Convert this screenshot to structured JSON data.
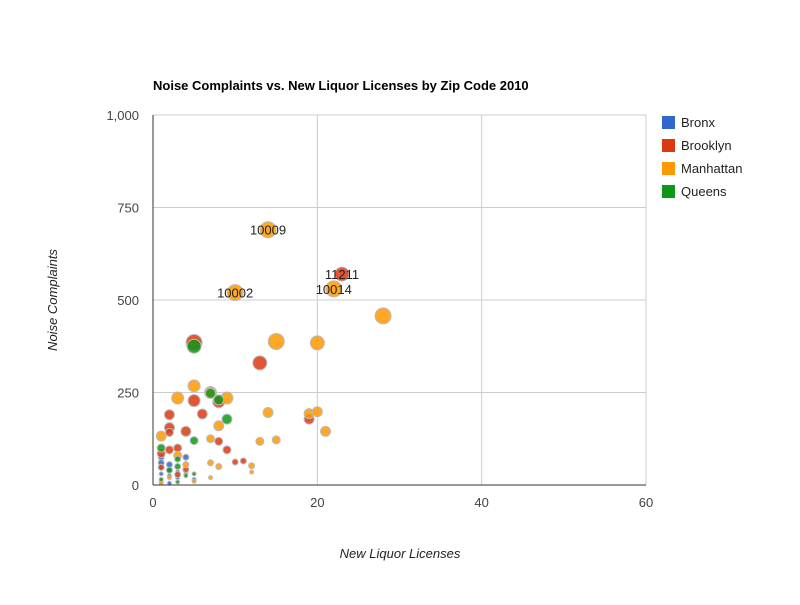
{
  "chart_data": {
    "type": "scatter",
    "title": "Noise Complaints vs. New Liquor Licenses by Zip Code 2010",
    "xlabel": "New Liquor Licenses",
    "ylabel": "Noise Complaints",
    "xlim": [
      0,
      60
    ],
    "ylim": [
      0,
      1000
    ],
    "x_ticks": [
      "0",
      "20",
      "40",
      "60"
    ],
    "y_ticks": [
      "0",
      "250",
      "500",
      "750",
      "1,000"
    ],
    "grid": true,
    "legend_position": "right",
    "series": [
      {
        "name": "Bronx",
        "color": "#3366cc",
        "points": [
          {
            "x": 1,
            "y": 75,
            "r": 3
          },
          {
            "x": 1,
            "y": 60,
            "r": 3
          },
          {
            "x": 1,
            "y": 45,
            "r": 2
          },
          {
            "x": 1,
            "y": 30,
            "r": 2
          },
          {
            "x": 2,
            "y": 55,
            "r": 3
          },
          {
            "x": 2,
            "y": 40,
            "r": 2
          },
          {
            "x": 2,
            "y": 25,
            "r": 2
          },
          {
            "x": 3,
            "y": 35,
            "r": 2
          },
          {
            "x": 3,
            "y": 20,
            "r": 2
          },
          {
            "x": 4,
            "y": 75,
            "r": 3
          },
          {
            "x": 4,
            "y": 30,
            "r": 2
          },
          {
            "x": 5,
            "y": 15,
            "r": 2
          },
          {
            "x": 1,
            "y": 10,
            "r": 2
          },
          {
            "x": 2,
            "y": 5,
            "r": 2
          }
        ]
      },
      {
        "name": "Brooklyn",
        "color": "#dc3912",
        "points": [
          {
            "x": 23,
            "y": 570,
            "r": 7,
            "label": "11211"
          },
          {
            "x": 5,
            "y": 385,
            "r": 8
          },
          {
            "x": 13,
            "y": 330,
            "r": 7
          },
          {
            "x": 5,
            "y": 228,
            "r": 6
          },
          {
            "x": 8,
            "y": 225,
            "r": 6
          },
          {
            "x": 6,
            "y": 192,
            "r": 5
          },
          {
            "x": 2,
            "y": 190,
            "r": 5
          },
          {
            "x": 19,
            "y": 178,
            "r": 5
          },
          {
            "x": 2,
            "y": 155,
            "r": 5
          },
          {
            "x": 4,
            "y": 145,
            "r": 5
          },
          {
            "x": 2,
            "y": 142,
            "r": 4
          },
          {
            "x": 8,
            "y": 118,
            "r": 4
          },
          {
            "x": 3,
            "y": 100,
            "r": 4
          },
          {
            "x": 2,
            "y": 95,
            "r": 4
          },
          {
            "x": 9,
            "y": 95,
            "r": 4
          },
          {
            "x": 1,
            "y": 85,
            "r": 4
          },
          {
            "x": 10,
            "y": 62,
            "r": 3
          },
          {
            "x": 11,
            "y": 65,
            "r": 3
          },
          {
            "x": 1,
            "y": 48,
            "r": 3
          },
          {
            "x": 4,
            "y": 42,
            "r": 3
          },
          {
            "x": 3,
            "y": 28,
            "r": 3
          }
        ]
      },
      {
        "name": "Manhattan",
        "color": "#ff9900",
        "points": [
          {
            "x": 14,
            "y": 690,
            "r": 8,
            "label": "10009"
          },
          {
            "x": 22,
            "y": 530,
            "r": 8,
            "label": "10014"
          },
          {
            "x": 10,
            "y": 520,
            "r": 8,
            "label": "10002"
          },
          {
            "x": 28,
            "y": 457,
            "r": 8
          },
          {
            "x": 15,
            "y": 388,
            "r": 8
          },
          {
            "x": 20,
            "y": 384,
            "r": 7
          },
          {
            "x": 5,
            "y": 268,
            "r": 6
          },
          {
            "x": 7,
            "y": 250,
            "r": 6
          },
          {
            "x": 3,
            "y": 235,
            "r": 6
          },
          {
            "x": 9,
            "y": 235,
            "r": 6
          },
          {
            "x": 14,
            "y": 196,
            "r": 5
          },
          {
            "x": 19,
            "y": 193,
            "r": 5
          },
          {
            "x": 20,
            "y": 198,
            "r": 5
          },
          {
            "x": 8,
            "y": 160,
            "r": 5
          },
          {
            "x": 21,
            "y": 145,
            "r": 5
          },
          {
            "x": 1,
            "y": 132,
            "r": 5
          },
          {
            "x": 7,
            "y": 125,
            "r": 4
          },
          {
            "x": 15,
            "y": 122,
            "r": 4
          },
          {
            "x": 13,
            "y": 118,
            "r": 4
          },
          {
            "x": 3,
            "y": 80,
            "r": 4
          },
          {
            "x": 7,
            "y": 60,
            "r": 3
          },
          {
            "x": 4,
            "y": 55,
            "r": 3
          },
          {
            "x": 12,
            "y": 52,
            "r": 3
          },
          {
            "x": 8,
            "y": 50,
            "r": 3
          },
          {
            "x": 12,
            "y": 35,
            "r": 2
          },
          {
            "x": 7,
            "y": 20,
            "r": 2
          },
          {
            "x": 2,
            "y": 20,
            "r": 2
          },
          {
            "x": 5,
            "y": 10,
            "r": 2
          },
          {
            "x": 1,
            "y": 5,
            "r": 2
          }
        ]
      },
      {
        "name": "Queens",
        "color": "#109618",
        "points": [
          {
            "x": 5,
            "y": 375,
            "r": 7
          },
          {
            "x": 8,
            "y": 230,
            "r": 5
          },
          {
            "x": 7,
            "y": 248,
            "r": 5
          },
          {
            "x": 9,
            "y": 178,
            "r": 5
          },
          {
            "x": 5,
            "y": 120,
            "r": 4
          },
          {
            "x": 1,
            "y": 100,
            "r": 4
          },
          {
            "x": 3,
            "y": 70,
            "r": 3
          },
          {
            "x": 3,
            "y": 50,
            "r": 3
          },
          {
            "x": 2,
            "y": 40,
            "r": 3
          },
          {
            "x": 4,
            "y": 25,
            "r": 2
          },
          {
            "x": 5,
            "y": 30,
            "r": 2
          },
          {
            "x": 1,
            "y": 15,
            "r": 2
          },
          {
            "x": 3,
            "y": 8,
            "r": 2
          }
        ]
      }
    ]
  }
}
